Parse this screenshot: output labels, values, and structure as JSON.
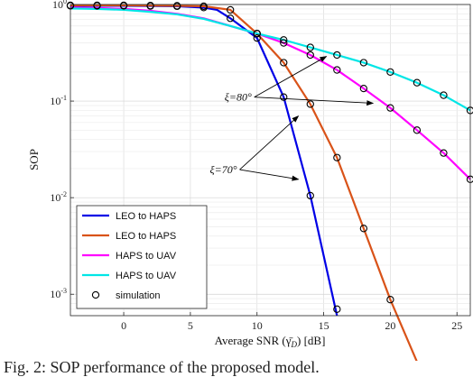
{
  "chart_data": {
    "type": "line",
    "xlabel": "Average SNR (γ̄",
    "xlabel_sub": "D",
    "xlabel_unit": ") [dB]",
    "ylabel": "SOP",
    "xlim": [
      -4,
      26
    ],
    "ylim": [
      0.0006,
      1
    ],
    "yscale": "log",
    "x_ticks": [
      0,
      5,
      10,
      15,
      20,
      25
    ],
    "y_ticks": [
      {
        "value": 1,
        "exp": "0"
      },
      {
        "value": 0.1,
        "exp": "-1"
      },
      {
        "value": 0.01,
        "exp": "-2"
      },
      {
        "value": 0.001,
        "exp": "-3"
      }
    ],
    "grid": true,
    "legend_position": "bottom-left",
    "series": [
      {
        "name": "LEO to HAPS",
        "color": "#0000e6",
        "x": [
          -4,
          -2,
          0,
          2,
          4,
          6,
          7,
          8,
          10,
          12,
          14,
          16
        ],
        "y": [
          0.97,
          0.97,
          0.97,
          0.965,
          0.96,
          0.93,
          0.88,
          0.72,
          0.45,
          0.11,
          0.0105,
          0.0006
        ]
      },
      {
        "name": "LEO to HAPS",
        "color": "#d95319",
        "x": [
          -4,
          -2,
          0,
          2,
          4,
          6,
          8,
          10,
          12,
          14,
          16,
          18,
          20,
          22
        ],
        "y": [
          0.98,
          0.98,
          0.98,
          0.975,
          0.97,
          0.96,
          0.88,
          0.5,
          0.25,
          0.093,
          0.026,
          0.0048,
          0.00088,
          0.0002
        ]
      },
      {
        "name": "HAPS to UAV",
        "color": "#ff00ff",
        "x": [
          -4,
          -2,
          0,
          2,
          4,
          6,
          8,
          10,
          12,
          14,
          16,
          18,
          20,
          22,
          24,
          26
        ],
        "y": [
          0.93,
          0.92,
          0.9,
          0.86,
          0.8,
          0.72,
          0.6,
          0.5,
          0.4,
          0.3,
          0.21,
          0.135,
          0.085,
          0.05,
          0.029,
          0.0155
        ]
      },
      {
        "name": "HAPS to UAV",
        "color": "#00e6e6",
        "x": [
          -4,
          -2,
          0,
          2,
          4,
          6,
          8,
          10,
          12,
          14,
          16,
          18,
          20,
          22,
          24,
          26
        ],
        "y": [
          0.91,
          0.9,
          0.88,
          0.84,
          0.79,
          0.71,
          0.6,
          0.5,
          0.43,
          0.36,
          0.3,
          0.25,
          0.2,
          0.155,
          0.115,
          0.08
        ]
      }
    ],
    "markers": {
      "name": "simulation",
      "points": [
        {
          "series": 0,
          "x": [
            -4,
            -2,
            0,
            2,
            4,
            6,
            8,
            10,
            12,
            14,
            16
          ],
          "y": [
            0.97,
            0.97,
            0.97,
            0.965,
            0.96,
            0.93,
            0.72,
            0.45,
            0.11,
            0.0105,
            0.0007
          ]
        },
        {
          "series": 1,
          "x": [
            -4,
            -2,
            0,
            2,
            4,
            6,
            8,
            10,
            12,
            14,
            16,
            18,
            20
          ],
          "y": [
            0.98,
            0.98,
            0.98,
            0.975,
            0.97,
            0.96,
            0.88,
            0.5,
            0.25,
            0.093,
            0.026,
            0.0048,
            0.00088
          ]
        },
        {
          "series": 2,
          "x": [
            10,
            12,
            14,
            16,
            18,
            20,
            22,
            24,
            26
          ],
          "y": [
            0.5,
            0.4,
            0.3,
            0.21,
            0.135,
            0.085,
            0.05,
            0.029,
            0.0155
          ]
        },
        {
          "series": 3,
          "x": [
            10,
            12,
            14,
            16,
            18,
            20,
            22,
            24,
            26
          ],
          "y": [
            0.5,
            0.43,
            0.36,
            0.3,
            0.25,
            0.2,
            0.155,
            0.115,
            0.08
          ]
        }
      ]
    },
    "annotations": [
      {
        "text": "ξ=80°",
        "anchor": [
          9.8,
          0.11
        ],
        "targets": [
          [
            15.2,
            0.29
          ],
          [
            18.7,
            0.095
          ]
        ]
      },
      {
        "text": "ξ=70°",
        "anchor": [
          8.7,
          0.0195
        ],
        "targets": [
          [
            13.1,
            0.0155
          ],
          [
            13.1,
            0.07
          ]
        ]
      }
    ]
  },
  "caption": "Fig. 2: SOP performance of the proposed model."
}
